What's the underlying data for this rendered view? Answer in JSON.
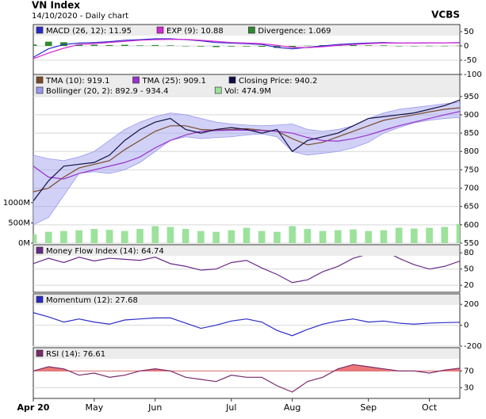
{
  "title": "VN Index",
  "subtitle": "14/10/2020 - Daily chart",
  "source": "VCBS",
  "chart_data": [
    {
      "type": "line",
      "ylim": [
        -100,
        75
      ],
      "yticks": [
        -100,
        -50,
        0,
        50
      ],
      "series": [
        {
          "name": "MACD (26, 12): 11.95",
          "kind": "line",
          "color": "#2a2ac8",
          "values": [
            -40,
            -10,
            5,
            10,
            12,
            15,
            20,
            22,
            25,
            25,
            22,
            18,
            12,
            10,
            8,
            5,
            -5,
            -10,
            -5,
            0,
            5,
            8,
            10,
            12,
            10,
            10,
            11,
            11,
            11.95
          ]
        },
        {
          "name": "EXP (9): 10.88",
          "kind": "line",
          "color": "#d42ad4",
          "values": [
            -45,
            -25,
            -8,
            5,
            8,
            12,
            16,
            20,
            22,
            23,
            23,
            20,
            16,
            12,
            10,
            8,
            2,
            -5,
            -6,
            -3,
            2,
            5,
            8,
            10,
            10,
            10,
            10.5,
            10.8,
            10.88
          ]
        },
        {
          "name": "Divergence: 1.069",
          "kind": "bar",
          "color": "#2e8a2e",
          "values": [
            5,
            15,
            13,
            5,
            4,
            3,
            4,
            2,
            3,
            2,
            -1,
            -2,
            -4,
            -2,
            -2,
            -3,
            -7,
            -5,
            1,
            3,
            3,
            3,
            2,
            2,
            0,
            0,
            0.5,
            0.2,
            1.069
          ]
        }
      ]
    },
    {
      "type": "line",
      "ylim": [
        550,
        1010
      ],
      "yticks": [
        550,
        600,
        650,
        700,
        750,
        800,
        850,
        900,
        950
      ],
      "y2lim": [
        0,
        4160
      ],
      "y2ticks": [
        {
          "value": 0,
          "label": "0M"
        },
        {
          "value": 500,
          "label": "500M"
        },
        {
          "value": 1000,
          "label": "1000M"
        }
      ],
      "series": [
        {
          "name": "TMA (10): 919.1",
          "kind": "line",
          "color": "#7a4a2a",
          "values": [
            690,
            700,
            730,
            755,
            765,
            775,
            805,
            830,
            855,
            870,
            870,
            860,
            858,
            860,
            862,
            858,
            855,
            835,
            818,
            825,
            840,
            855,
            870,
            885,
            893,
            900,
            908,
            915,
            919.1
          ]
        },
        {
          "name": "TMA (25): 909.1",
          "kind": "line",
          "color": "#9933cc",
          "values": [
            760,
            730,
            725,
            740,
            750,
            760,
            770,
            785,
            810,
            830,
            845,
            855,
            857,
            858,
            858,
            857,
            855,
            850,
            838,
            830,
            828,
            835,
            845,
            858,
            870,
            880,
            890,
            900,
            909.1
          ]
        },
        {
          "name": "Closing Price: 940.2",
          "kind": "line",
          "color": "#101040",
          "values": [
            665,
            720,
            760,
            765,
            770,
            790,
            830,
            860,
            880,
            890,
            860,
            850,
            860,
            865,
            860,
            850,
            860,
            800,
            830,
            840,
            850,
            870,
            890,
            895,
            900,
            905,
            915,
            925,
            940.2
          ]
        },
        {
          "name": "Bollinger (20, 2): 892.9 - 934.4",
          "kind": "band",
          "color": "#9999ee",
          "upper": [
            790,
            780,
            775,
            785,
            800,
            830,
            860,
            880,
            895,
            905,
            900,
            890,
            880,
            875,
            872,
            870,
            872,
            875,
            860,
            855,
            860,
            870,
            890,
            905,
            915,
            920,
            925,
            930,
            934.4
          ],
          "lower": [
            600,
            620,
            680,
            740,
            745,
            740,
            750,
            770,
            800,
            830,
            840,
            835,
            838,
            840,
            845,
            848,
            840,
            800,
            790,
            795,
            800,
            810,
            825,
            850,
            865,
            878,
            885,
            890,
            892.9
          ]
        },
        {
          "name": "Vol: 474.9M",
          "kind": "bar",
          "axis": "y2",
          "color": "#9ce29c",
          "values": [
            220,
            280,
            300,
            320,
            350,
            330,
            300,
            350,
            420,
            400,
            350,
            300,
            280,
            320,
            380,
            300,
            280,
            420,
            350,
            300,
            320,
            340,
            300,
            320,
            380,
            360,
            380,
            400,
            474.9
          ]
        }
      ]
    },
    {
      "type": "line",
      "ylim": [
        7,
        95
      ],
      "yticks": [
        20,
        50,
        80
      ],
      "overbought": 80,
      "series": [
        {
          "name": "Money Flow Index (14): 64.74",
          "kind": "line",
          "color": "#6a2a8a",
          "values": [
            60,
            70,
            62,
            72,
            65,
            70,
            68,
            66,
            72,
            60,
            55,
            48,
            50,
            62,
            66,
            52,
            40,
            25,
            30,
            45,
            55,
            70,
            78,
            85,
            70,
            58,
            50,
            55,
            64.74
          ]
        }
      ]
    },
    {
      "type": "line",
      "ylim": [
        -200,
        300
      ],
      "yticks": [
        -200,
        0,
        200
      ],
      "series": [
        {
          "name": "Momentum (12): 27.68",
          "kind": "line",
          "color": "#2a2ac8",
          "values": [
            120,
            80,
            30,
            60,
            30,
            10,
            50,
            60,
            70,
            70,
            20,
            -30,
            0,
            40,
            60,
            30,
            -50,
            -100,
            -40,
            10,
            40,
            60,
            30,
            40,
            20,
            10,
            20,
            25,
            27.68
          ]
        }
      ]
    },
    {
      "type": "line",
      "ylim": [
        5,
        125
      ],
      "yticks": [
        30,
        70
      ],
      "overbought": 70,
      "categories": [
        "Apr 20",
        null,
        null,
        null,
        "May",
        null,
        null,
        null,
        "Jun",
        null,
        null,
        null,
        null,
        "Jul",
        null,
        null,
        null,
        "Aug",
        null,
        null,
        null,
        null,
        "Sep",
        null,
        null,
        null,
        "Oct",
        null,
        null
      ],
      "series": [
        {
          "name": "RSI (14): 76.61",
          "kind": "line",
          "color": "#7a2a6a",
          "values": [
            70,
            80,
            75,
            60,
            65,
            55,
            60,
            70,
            75,
            70,
            55,
            50,
            45,
            60,
            55,
            55,
            35,
            20,
            45,
            55,
            75,
            85,
            80,
            75,
            70,
            70,
            65,
            72,
            76.61
          ]
        }
      ]
    }
  ]
}
